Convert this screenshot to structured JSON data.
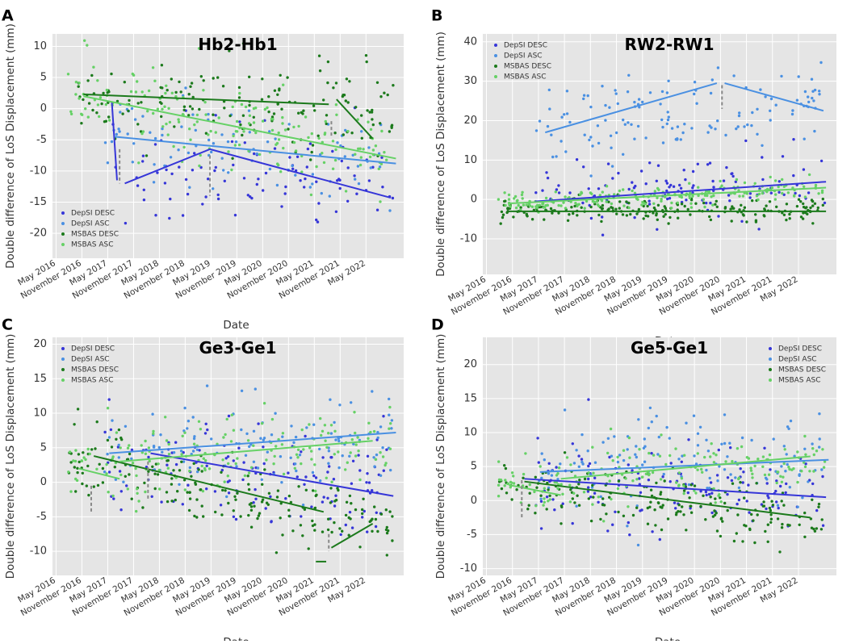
{
  "colors": {
    "panel_bg": "#e5e5e5",
    "grid": "#ffffff",
    "depsi_desc": "#3636d8",
    "depsi_asc": "#4a90e2",
    "msbas_desc": "#1c7a1c",
    "msbas_asc": "#66d166",
    "gap": "#888888"
  },
  "xlabel": "Date",
  "date_ticks": [
    "May 2016",
    "November 2016",
    "May 2017",
    "November 2017",
    "May 2018",
    "November 2018",
    "May 2019",
    "November 2019",
    "May 2020",
    "November 2020",
    "May 2021",
    "November 2021",
    "May 2022"
  ],
  "legend_labels": [
    "DepSI DESC",
    "DepSI ASC",
    "MSBAS DESC",
    "MSBAS ASC"
  ],
  "chart_data": [
    {
      "panel": "A",
      "type": "scatter",
      "title": "Hb2-Hb1",
      "ylabel": "Double difference of LoS Displacement (mm)",
      "xlim": [
        2016.3,
        2023.1
      ],
      "ylim": [
        -24,
        12
      ],
      "yticks": [
        10,
        5,
        0,
        -5,
        -10,
        -15,
        -20
      ],
      "legend": "bottom-left",
      "cloud": {
        "x0": 2016.6,
        "x1": 2022.9,
        "series": [
          {
            "name": "DepSI DESC",
            "n": 95,
            "from": 2017.45,
            "a0": -10,
            "a1": -12,
            "sd": 4
          },
          {
            "name": "DepSI ASC",
            "n": 90,
            "from": 2017.3,
            "a0": -3,
            "a1": -9,
            "sd": 4
          },
          {
            "name": "MSBAS DESC",
            "n": 160,
            "from": 2016.6,
            "a0": 2.5,
            "a1": -1,
            "sd": 3.5
          },
          {
            "name": "MSBAS ASC",
            "n": 170,
            "from": 2016.6,
            "a0": 2,
            "a1": -8,
            "sd": 3.5
          }
        ]
      },
      "trends": [
        {
          "name": "DepSI DESC",
          "x": [
            2017.45,
            2017.55
          ],
          "y": [
            1,
            -11.5
          ]
        },
        {
          "name": "DepSI DESC",
          "x": [
            2017.7,
            2019.35
          ],
          "y": [
            -12,
            -6.5
          ]
        },
        {
          "name": "DepSI DESC",
          "x": [
            2019.35,
            2022.85
          ],
          "y": [
            -6.5,
            -14.3
          ]
        },
        {
          "name": "DepSI ASC",
          "x": [
            2017.5,
            2022.95
          ],
          "y": [
            -4.5,
            -8.8
          ]
        },
        {
          "name": "MSBAS DESC",
          "x": [
            2016.9,
            2021.65
          ],
          "y": [
            2.3,
            0.7
          ]
        },
        {
          "name": "MSBAS DESC",
          "x": [
            2021.8,
            2022.5
          ],
          "y": [
            1.5,
            -4.8
          ]
        },
        {
          "name": "MSBAS ASC",
          "x": [
            2016.9,
            2022.95
          ],
          "y": [
            2,
            -8
          ]
        }
      ],
      "gaps": [
        {
          "x": 2017.6,
          "y": [
            -6.5,
            -12
          ]
        },
        {
          "x": 2019.35,
          "y": [
            -7.5,
            -14
          ]
        },
        {
          "x": 2021.7,
          "y": [
            -2,
            -4.5
          ]
        }
      ]
    },
    {
      "panel": "B",
      "type": "scatter",
      "title": "RW2-RW1",
      "ylabel": "Double difference of LoS Displacement (mm)",
      "xlim": [
        2016.3,
        2023.1
      ],
      "ylim": [
        -19,
        42
      ],
      "yticks": [
        40,
        30,
        20,
        10,
        0,
        -10
      ],
      "legend": "top-left",
      "cloud": {
        "x0": 2016.6,
        "x1": 2022.9,
        "series": [
          {
            "name": "DepSI DESC",
            "n": 110,
            "from": 2017.3,
            "a0": 0,
            "a1": 4,
            "sd": 4
          },
          {
            "name": "DepSI ASC",
            "n": 130,
            "from": 2017.3,
            "a0": 17,
            "a1": 25,
            "sd": 5
          },
          {
            "name": "MSBAS DESC",
            "n": 200,
            "from": 2016.6,
            "a0": -2.5,
            "a1": -3,
            "sd": 1.4
          },
          {
            "name": "MSBAS ASC",
            "n": 200,
            "from": 2016.6,
            "a0": -1,
            "a1": 3,
            "sd": 1.4
          }
        ]
      },
      "trends": [
        {
          "name": "DepSI DESC",
          "x": [
            2017.3,
            2022.9
          ],
          "y": [
            -0.5,
            4.5
          ]
        },
        {
          "name": "DepSI ASC",
          "x": [
            2017.5,
            2020.8
          ],
          "y": [
            17,
            29.5
          ]
        },
        {
          "name": "DepSI ASC",
          "x": [
            2020.95,
            2022.85
          ],
          "y": [
            29.5,
            22.5
          ]
        },
        {
          "name": "MSBAS DESC",
          "x": [
            2016.8,
            2022.9
          ],
          "y": [
            -3,
            -3
          ]
        },
        {
          "name": "MSBAS ASC",
          "x": [
            2016.8,
            2022.9
          ],
          "y": [
            -1,
            3
          ]
        }
      ],
      "gaps": [
        {
          "x": 2020.9,
          "y": [
            29,
            23
          ]
        }
      ]
    },
    {
      "panel": "C",
      "type": "scatter",
      "title": "Ge3-Ge1",
      "ylabel": "Double difference of LoS Displacement (mm)",
      "xlim": [
        2016.3,
        2023.1
      ],
      "ylim": [
        -13.5,
        21
      ],
      "yticks": [
        20,
        15,
        10,
        5,
        0,
        -5,
        -10
      ],
      "legend": "top-left",
      "cloud": {
        "x0": 2016.6,
        "x1": 2022.9,
        "series": [
          {
            "name": "DepSI DESC",
            "n": 130,
            "from": 2017.3,
            "a0": 3,
            "a1": -1,
            "sd": 4
          },
          {
            "name": "DepSI ASC",
            "n": 120,
            "from": 2017.3,
            "a0": 4,
            "a1": 7,
            "sd": 3.5
          },
          {
            "name": "MSBAS DESC",
            "n": 190,
            "from": 2016.6,
            "a0": 3.5,
            "a1": -7,
            "sd": 2.5
          },
          {
            "name": "MSBAS ASC",
            "n": 170,
            "from": 2016.6,
            "a0": 2,
            "a1": 6,
            "sd": 2.5
          }
        ]
      },
      "trends": [
        {
          "name": "DepSI DESC",
          "x": [
            2018.2,
            2022.9
          ],
          "y": [
            4.2,
            -2
          ]
        },
        {
          "name": "DepSI ASC",
          "x": [
            2017.4,
            2022.95
          ],
          "y": [
            4.2,
            7.2
          ]
        },
        {
          "name": "MSBAS DESC",
          "x": [
            2017.1,
            2021.55
          ],
          "y": [
            3.8,
            -4.3
          ]
        },
        {
          "name": "MSBAS DESC",
          "x": [
            2021.7,
            2022.5
          ],
          "y": [
            -9.5,
            -6
          ]
        },
        {
          "name": "MSBAS DESC",
          "x": [
            2021.4,
            2021.6
          ],
          "y": [
            -11.5,
            -11.5
          ]
        },
        {
          "name": "MSBAS ASC",
          "x": [
            2016.8,
            2017.6
          ],
          "y": [
            2,
            0.5
          ]
        },
        {
          "name": "MSBAS ASC",
          "x": [
            2017.6,
            2022.5
          ],
          "y": [
            3,
            6
          ]
        }
      ],
      "gaps": [
        {
          "x": 2017.05,
          "y": [
            -0.5,
            -4.5
          ]
        },
        {
          "x": 2018.15,
          "y": [
            3,
            -2.5
          ]
        },
        {
          "x": 2021.65,
          "y": [
            -7.5,
            -10
          ]
        }
      ]
    },
    {
      "panel": "D",
      "type": "scatter",
      "title": "Ge5-Ge1",
      "ylabel": "Double difference of LoS Displacement (mm)",
      "xlim": [
        2016.3,
        2023.1
      ],
      "ylim": [
        -11,
        24
      ],
      "yticks": [
        20,
        15,
        10,
        5,
        0,
        -5,
        -10
      ],
      "legend": "top-right",
      "cloud": {
        "x0": 2016.6,
        "x1": 2022.9,
        "series": [
          {
            "name": "DepSI DESC",
            "n": 130,
            "from": 2017.3,
            "a0": 3,
            "a1": 0.5,
            "sd": 3.5
          },
          {
            "name": "DepSI ASC",
            "n": 120,
            "from": 2017.3,
            "a0": 4.5,
            "a1": 6.5,
            "sd": 3.5
          },
          {
            "name": "MSBAS DESC",
            "n": 190,
            "from": 2016.6,
            "a0": 2.5,
            "a1": -3,
            "sd": 2.2
          },
          {
            "name": "MSBAS ASC",
            "n": 170,
            "from": 2016.6,
            "a0": 2,
            "a1": 6.5,
            "sd": 2.2
          }
        ]
      },
      "trends": [
        {
          "name": "DepSI DESC",
          "x": [
            2017.1,
            2022.9
          ],
          "y": [
            3.2,
            0.5
          ]
        },
        {
          "name": "DepSI ASC",
          "x": [
            2017.4,
            2022.95
          ],
          "y": [
            4.2,
            6
          ]
        },
        {
          "name": "MSBAS DESC",
          "x": [
            2017.1,
            2022.6
          ],
          "y": [
            2.8,
            -2.5
          ]
        },
        {
          "name": "MSBAS ASC",
          "x": [
            2016.8,
            2017.8
          ],
          "y": [
            2.3,
            0.8
          ]
        },
        {
          "name": "MSBAS ASC",
          "x": [
            2017.8,
            2022.6
          ],
          "y": [
            3.2,
            6.5
          ]
        }
      ],
      "gaps": [
        {
          "x": 2017.05,
          "y": [
            3,
            -2.5
          ]
        }
      ]
    }
  ]
}
